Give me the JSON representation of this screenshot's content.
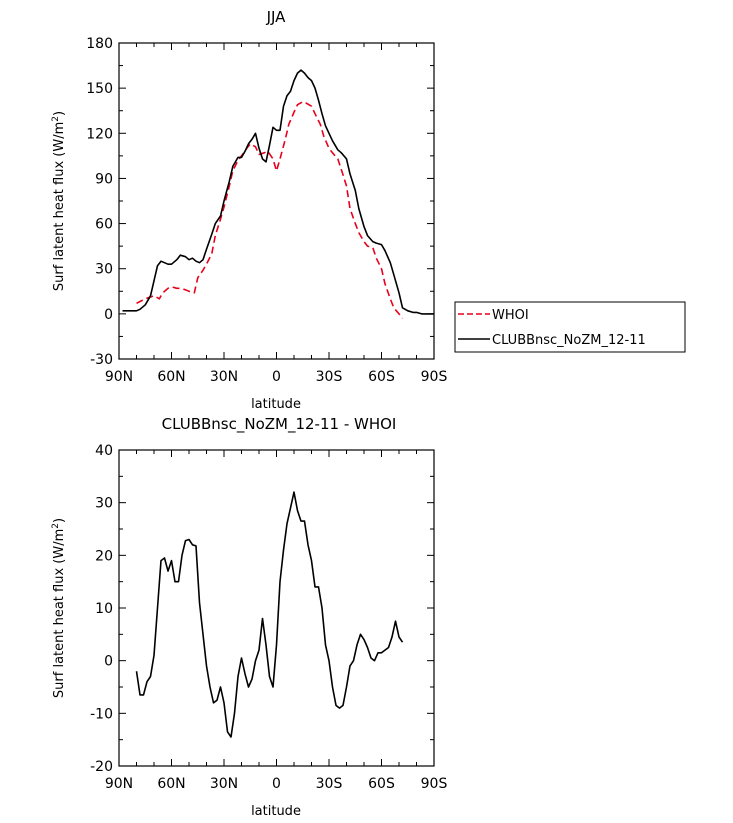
{
  "chart_data": [
    {
      "type": "line",
      "title": "JJA",
      "xlabel": "latitude",
      "ylabel": "Surf latent heat flux (W/m",
      "ylabel_sup": "2",
      "ylabel_close": ")",
      "xlim": [
        90,
        -90
      ],
      "ylim": [
        -30,
        180
      ],
      "x_ticks": [
        90,
        60,
        30,
        0,
        -30,
        -60,
        -90
      ],
      "x_tick_labels": [
        "90N",
        "60N",
        "30N",
        "0",
        "30S",
        "60S",
        "90S"
      ],
      "y_ticks": [
        -30,
        0,
        30,
        60,
        90,
        120,
        150,
        180
      ],
      "y_tick_labels": [
        "-30",
        "0",
        "30",
        "60",
        "90",
        "120",
        "150",
        "180"
      ],
      "legend_position": "right",
      "series": [
        {
          "name": "WHOI",
          "color": "#e8001c",
          "dash": true,
          "x": [
            80,
            75,
            70,
            67,
            65,
            62,
            60,
            57,
            55,
            52,
            50,
            47,
            45,
            42,
            40,
            37,
            35,
            32,
            30,
            27,
            25,
            22,
            20,
            17,
            15,
            12,
            10,
            7,
            5,
            2,
            0,
            -2,
            -5,
            -7,
            -10,
            -12,
            -15,
            -17,
            -20,
            -22,
            -25,
            -27,
            -30,
            -32,
            -35,
            -37,
            -40,
            -42,
            -45,
            -47,
            -50,
            -52,
            -55,
            -57,
            -60,
            -62,
            -65,
            -67,
            -70,
            -72
          ],
          "y": [
            7,
            10,
            12,
            10,
            14,
            17,
            18,
            17,
            17,
            16,
            15,
            14,
            24,
            29,
            33,
            40,
            52,
            63,
            71,
            85,
            95,
            102,
            105,
            110,
            113,
            111,
            106,
            107,
            108,
            103,
            95,
            103,
            116,
            126,
            134,
            139,
            141,
            140,
            138,
            133,
            126,
            118,
            110,
            107,
            103,
            96,
            85,
            70,
            60,
            54,
            48,
            45,
            44,
            37,
            30,
            20,
            10,
            4,
            0,
            -3
          ]
        },
        {
          "name": "CLUBBnsc_NoZM_12-11",
          "color": "#000000",
          "dash": false,
          "x": [
            88,
            85,
            82,
            80,
            78,
            75,
            72,
            70,
            68,
            66,
            64,
            62,
            60,
            57,
            55,
            52,
            50,
            48,
            46,
            44,
            42,
            40,
            37,
            35,
            32,
            30,
            27,
            25,
            22,
            20,
            18,
            16,
            14,
            12,
            10,
            8,
            6,
            4,
            2,
            0,
            -2,
            -4,
            -6,
            -8,
            -10,
            -12,
            -14,
            -16,
            -18,
            -20,
            -22,
            -24,
            -26,
            -28,
            -30,
            -32,
            -35,
            -37,
            -40,
            -42,
            -45,
            -47,
            -50,
            -52,
            -55,
            -57,
            -60,
            -62,
            -65,
            -67,
            -70,
            -72,
            -75,
            -78,
            -80,
            -83,
            -86,
            -90
          ],
          "y": [
            2,
            2,
            2,
            2,
            3,
            6,
            12,
            22,
            32,
            35,
            34,
            33,
            33,
            36,
            39,
            38,
            36,
            37,
            35,
            34,
            36,
            43,
            53,
            60,
            65,
            75,
            88,
            98,
            104,
            104,
            108,
            113,
            116,
            120,
            110,
            103,
            101,
            112,
            124,
            122,
            122,
            138,
            145,
            148,
            155,
            160,
            162,
            160,
            157,
            155,
            150,
            142,
            133,
            125,
            120,
            115,
            109,
            107,
            103,
            93,
            82,
            70,
            58,
            52,
            48,
            47,
            46,
            42,
            34,
            26,
            14,
            4,
            2,
            1,
            1,
            0,
            0,
            0
          ]
        }
      ]
    },
    {
      "type": "line",
      "title": "CLUBBnsc_NoZM_12-11 - WHOI",
      "xlabel": "latitude",
      "ylabel": "Surf latent heat flux (W/m",
      "ylabel_sup": "2",
      "ylabel_close": ")",
      "xlim": [
        90,
        -90
      ],
      "ylim": [
        -20,
        40
      ],
      "x_ticks": [
        90,
        60,
        30,
        0,
        -30,
        -60,
        -90
      ],
      "x_tick_labels": [
        "90N",
        "60N",
        "30N",
        "0",
        "30S",
        "60S",
        "90S"
      ],
      "y_ticks": [
        -20,
        -10,
        0,
        10,
        20,
        30,
        40
      ],
      "y_tick_labels": [
        "-20",
        "-10",
        "0",
        "10",
        "20",
        "30",
        "40"
      ],
      "series": [
        {
          "color": "#000000",
          "dash": false,
          "x": [
            80,
            78,
            76,
            74,
            72,
            70,
            68,
            66,
            64,
            62,
            60,
            58,
            56,
            54,
            52,
            50,
            48,
            46,
            44,
            42,
            40,
            38,
            36,
            34,
            32,
            30,
            28,
            26,
            24,
            22,
            20,
            18,
            16,
            14,
            12,
            10,
            8,
            6,
            4,
            2,
            0,
            -2,
            -4,
            -6,
            -8,
            -10,
            -12,
            -14,
            -16,
            -18,
            -20,
            -22,
            -24,
            -26,
            -28,
            -30,
            -32,
            -34,
            -36,
            -38,
            -40,
            -42,
            -44,
            -46,
            -48,
            -50,
            -52,
            -54,
            -56,
            -58,
            -60,
            -62,
            -64,
            -66,
            -68,
            -70,
            -72
          ],
          "y": [
            -2,
            -6.5,
            -6.5,
            -4,
            -3,
            1,
            10,
            19,
            19.5,
            17,
            19,
            15,
            15,
            20,
            22.8,
            23,
            22,
            21.8,
            11,
            5,
            -1,
            -5,
            -8,
            -7.5,
            -5,
            -8,
            -13.5,
            -14.5,
            -10,
            -3,
            0.5,
            -2.5,
            -5,
            -3.5,
            0,
            2,
            8,
            3,
            -3,
            -5,
            3,
            15,
            21,
            26,
            29,
            32,
            28.5,
            26.5,
            26.5,
            22,
            19,
            14,
            14,
            10,
            3,
            0,
            -5,
            -8.5,
            -9,
            -8.5,
            -5,
            -1,
            0,
            3,
            5,
            4,
            2.5,
            0.5,
            0,
            1.5,
            1.5,
            2,
            2.5,
            4.5,
            7.5,
            4.5,
            3.5
          ]
        }
      ]
    }
  ]
}
